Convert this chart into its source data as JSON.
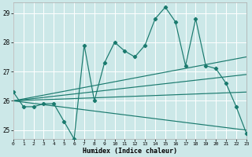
{
  "xlabel": "Humidex (Indice chaleur)",
  "bg_color": "#cce8e8",
  "grid_color": "#b8d8d8",
  "line_color": "#1a7a6e",
  "x": [
    0,
    1,
    2,
    3,
    4,
    5,
    6,
    7,
    8,
    9,
    10,
    11,
    12,
    13,
    14,
    15,
    16,
    17,
    18,
    19,
    20,
    21,
    22,
    23
  ],
  "y_main": [
    26.3,
    25.8,
    25.8,
    25.9,
    25.9,
    25.3,
    24.7,
    27.9,
    26.0,
    27.3,
    28.0,
    27.7,
    27.5,
    27.9,
    28.8,
    29.2,
    28.7,
    27.2,
    28.8,
    27.2,
    27.1,
    26.6,
    25.8,
    24.9
  ],
  "trend_lines": [
    [
      0,
      26.0,
      23,
      27.5
    ],
    [
      0,
      26.0,
      23,
      26.9
    ],
    [
      0,
      26.0,
      23,
      26.3
    ],
    [
      0,
      26.0,
      23,
      25.0
    ]
  ],
  "xlim": [
    0,
    23
  ],
  "ylim": [
    24.7,
    29.35
  ],
  "yticks": [
    25,
    26,
    27,
    28,
    29
  ],
  "xticks": [
    0,
    1,
    2,
    3,
    4,
    5,
    6,
    7,
    8,
    9,
    10,
    11,
    12,
    13,
    14,
    15,
    16,
    17,
    18,
    19,
    20,
    21,
    22,
    23
  ]
}
